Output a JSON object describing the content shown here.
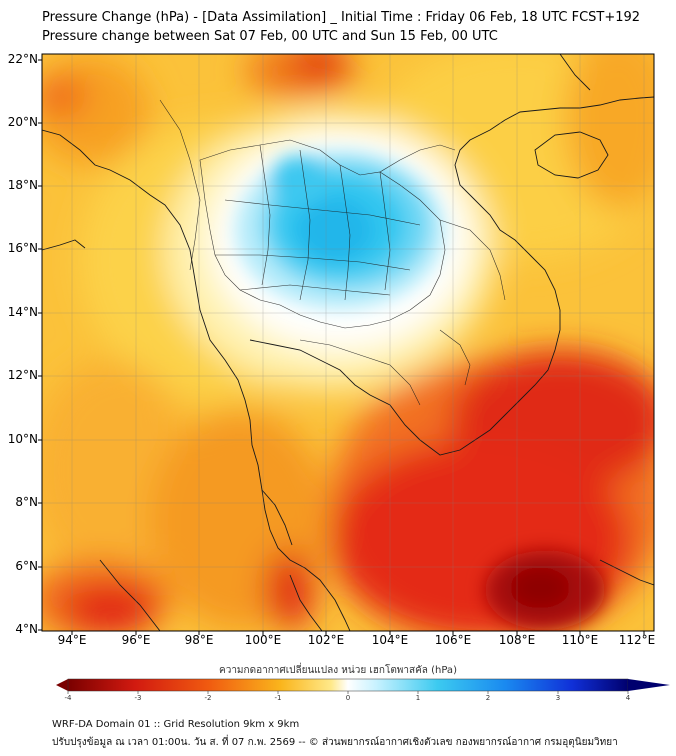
{
  "title_line1": "Pressure Change (hPa) - [Data Assimilation] _ Initial Time : Friday 06 Feb, 18 UTC FCST+192",
  "title_line2": "Pressure change between Sat 07 Feb, 00 UTC and Sun 15 Feb, 00 UTC",
  "lat_labels": [
    "22°N",
    "20°N",
    "18°N",
    "16°N",
    "14°N",
    "12°N",
    "10°N",
    "8°N",
    "6°N",
    "4°N"
  ],
  "lon_labels": [
    "94°E",
    "96°E",
    "98°E",
    "100°E",
    "102°E",
    "104°E",
    "106°E",
    "108°E",
    "110°E",
    "112°E"
  ],
  "colorbar": {
    "title": "ความกดอากาศเปลี่ยนแปลง หน่วย เฮกโตพาสคัล (hPa)",
    "ticks": [
      "-4",
      "-3",
      "-2",
      "-1",
      "0",
      "1",
      "2",
      "3",
      "4"
    ],
    "range": [
      -4,
      4
    ]
  },
  "footer_line1": "WRF-DA Domain 01 :: Grid Resolution 9km x 9km",
  "footer_line2": "ปรับปรุงข้อมูล ณ เวลา 01:00น. วัน ส. ที่ 07 ก.พ. 2569 -- © ส่วนพยากรณ์อากาศเชิงตัวเลข กองพยากรณ์อากาศ กรมอุตุนิยมวิทยา",
  "colors": {
    "fall_strong": "#8b0000",
    "fall": "#e83020",
    "neutral": "#fff6c8",
    "rise": "#30c8f0",
    "rise_strong": "#00008b"
  }
}
